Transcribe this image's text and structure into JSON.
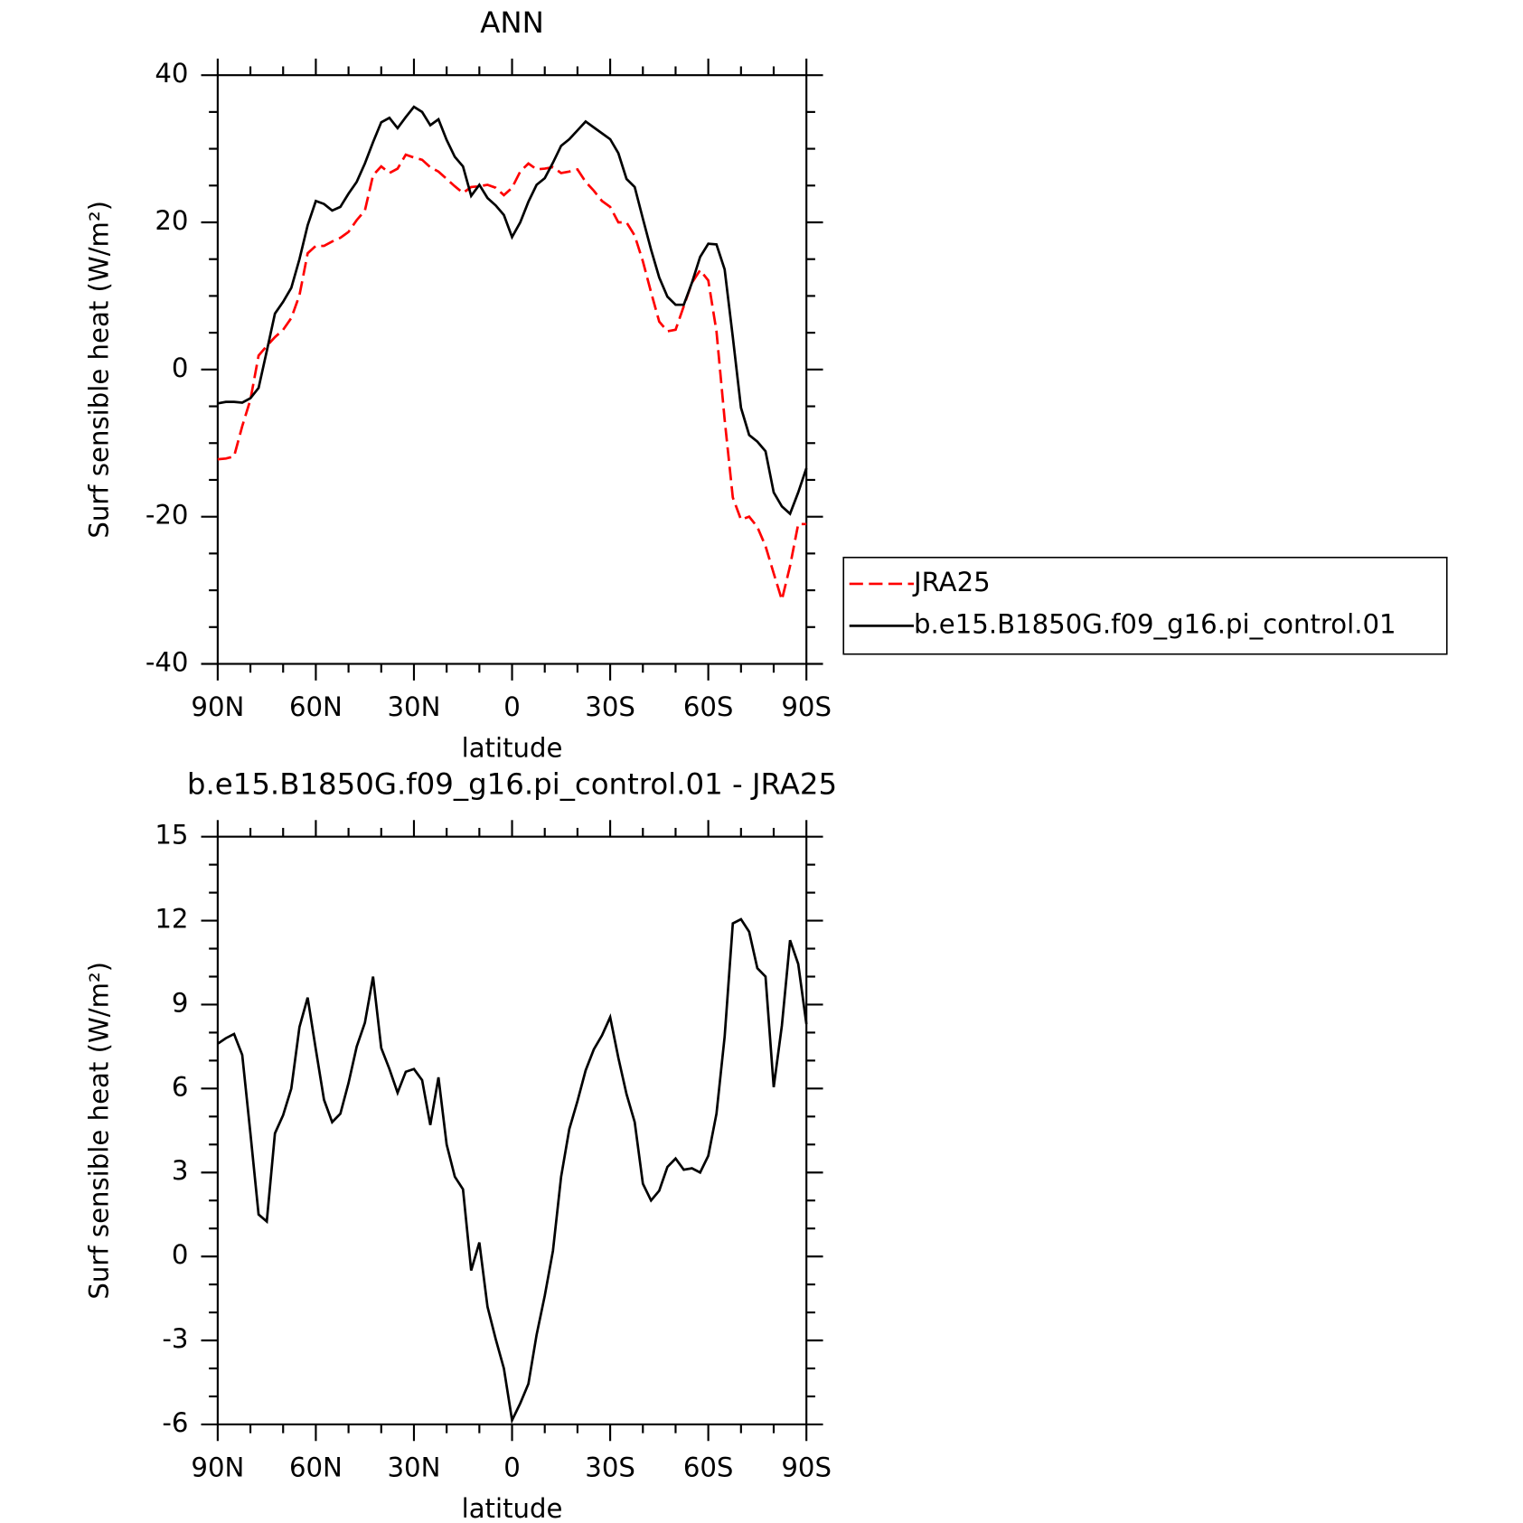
{
  "chart_data": [
    {
      "type": "line",
      "title": "ANN",
      "ylabel": "Surf sensible heat (W/m²)",
      "xlabel": "latitude",
      "xlim": [
        90,
        -90
      ],
      "ylim": [
        -40,
        40
      ],
      "xticks": [
        {
          "value": 90,
          "label": "90N"
        },
        {
          "value": 60,
          "label": "60N"
        },
        {
          "value": 30,
          "label": "30N"
        },
        0,
        {
          "value": -30,
          "label": "30S"
        },
        {
          "value": -60,
          "label": "60S"
        },
        {
          "value": -90,
          "label": "90S"
        }
      ],
      "yticks": [
        -40,
        -20,
        0,
        20,
        40
      ],
      "legend": "outside-right",
      "x": [
        90,
        87.5,
        85,
        82.5,
        80,
        77.5,
        75,
        72.5,
        70,
        67.5,
        65,
        62.5,
        60,
        57.5,
        55,
        52.5,
        50,
        47.5,
        45,
        42.5,
        40,
        37.5,
        35,
        32.5,
        30,
        27.5,
        25,
        22.5,
        20,
        17.5,
        15,
        12.5,
        10,
        7.5,
        5,
        2.5,
        0,
        -2.5,
        -5,
        -7.5,
        -10,
        -12.5,
        -15,
        -17.5,
        -20,
        -22.5,
        -25,
        -27.5,
        -30,
        -32.5,
        -35,
        -37.5,
        -40,
        -42.5,
        -45,
        -47.5,
        -50,
        -52.5,
        -55,
        -57.5,
        -60,
        -62.5,
        -65,
        -67.5,
        -70,
        -72.5,
        -75,
        -77.5,
        -80,
        -82.5,
        -85,
        -87.5,
        -90
      ],
      "series": [
        {
          "name": "JRA25",
          "color": "#ff0000",
          "dash": true,
          "values": [
            -12.2,
            -12.1,
            -11.8,
            -7.7,
            -4.1,
            1.9,
            3.2,
            4.4,
            5.4,
            7,
            10.1,
            15.8,
            16.8,
            16.8,
            17.4,
            17.9,
            18.7,
            20.3,
            21.6,
            26.4,
            27.6,
            26.7,
            27.3,
            29.2,
            28.8,
            28.5,
            27.5,
            26.9,
            25.9,
            24.9,
            24,
            24.8,
            24.9,
            25.1,
            24.7,
            23.7,
            24.7,
            26.9,
            28,
            27.2,
            27.3,
            27.5,
            26.7,
            26.9,
            27.2,
            25.5,
            24.3,
            22.9,
            22.1,
            20,
            20,
            18.2,
            14.7,
            10.5,
            6.5,
            5.2,
            5.4,
            8.6,
            11.8,
            13.5,
            12.1,
            5.2,
            -6.8,
            -17.4,
            -20.4,
            -20,
            -21.4,
            -24,
            -27.7,
            -31.3,
            -26.7,
            -21,
            -21
          ]
        },
        {
          "name": "b.e15.B1850G.f09_g16.pi_control.01",
          "color": "#000000",
          "dash": false,
          "values": [
            -4.6,
            -4.4,
            -4.4,
            -4.5,
            -3.9,
            -2.5,
            2.5,
            7.6,
            9.2,
            11.1,
            15,
            19.6,
            22.9,
            22.5,
            21.6,
            22.1,
            23.9,
            25.5,
            28,
            30.9,
            33.6,
            34.2,
            32.8,
            34.3,
            35.7,
            35,
            33.2,
            34,
            31.2,
            28.9,
            27.6,
            23.6,
            25.1,
            23.3,
            22.3,
            21,
            18,
            20,
            22.8,
            25.1,
            26,
            28.1,
            30.4,
            31.3,
            32.5,
            33.7,
            32.9,
            32.1,
            31.3,
            29.4,
            25.9,
            24.8,
            20.5,
            16.3,
            12.5,
            9.9,
            8.8,
            8.8,
            11.8,
            15.3,
            17.1,
            17,
            13.6,
            4.4,
            -5.2,
            -8.9,
            -9.8,
            -11.1,
            -16.7,
            -18.6,
            -19.6,
            -16.7,
            -13.4
          ]
        }
      ]
    },
    {
      "type": "line",
      "title": "b.e15.B1850G.f09_g16.pi_control.01 - JRA25",
      "ylabel": "Surf sensible heat (W/m²)",
      "xlabel": "latitude",
      "xlim": [
        90,
        -90
      ],
      "ylim": [
        -6,
        15
      ],
      "xticks": [
        {
          "value": 90,
          "label": "90N"
        },
        {
          "value": 60,
          "label": "60N"
        },
        {
          "value": 30,
          "label": "30N"
        },
        0,
        {
          "value": -30,
          "label": "30S"
        },
        {
          "value": -60,
          "label": "60S"
        },
        {
          "value": -90,
          "label": "90S"
        }
      ],
      "yticks": [
        -6,
        -3,
        0,
        3,
        6,
        9,
        12,
        15
      ],
      "x": [
        90,
        87.5,
        85,
        82.5,
        80,
        77.5,
        75,
        72.5,
        70,
        67.5,
        65,
        62.5,
        60,
        57.5,
        55,
        52.5,
        50,
        47.5,
        45,
        42.5,
        40,
        37.5,
        35,
        32.5,
        30,
        27.5,
        25,
        22.5,
        20,
        17.5,
        15,
        12.5,
        10,
        7.5,
        5,
        2.5,
        0,
        -2.5,
        -5,
        -7.5,
        -10,
        -12.5,
        -15,
        -17.5,
        -20,
        -22.5,
        -25,
        -27.5,
        -30,
        -32.5,
        -35,
        -37.5,
        -40,
        -42.5,
        -45,
        -47.5,
        -50,
        -52.5,
        -55,
        -57.5,
        -60,
        -62.5,
        -65,
        -67.5,
        -70,
        -72.5,
        -75,
        -77.5,
        -80,
        -82.5,
        -85,
        -87.5,
        -90
      ],
      "series": [
        {
          "color": "#000000",
          "values": [
            7.6,
            7.8,
            7.95,
            7.2,
            4.4,
            1.5,
            1.25,
            4.4,
            5.05,
            6,
            8.2,
            9.25,
            7.4,
            5.6,
            4.8,
            5.1,
            6.2,
            7.5,
            8.35,
            10,
            7.45,
            6.7,
            5.85,
            6.6,
            6.7,
            6.3,
            4.7,
            6.4,
            4,
            2.85,
            2.4,
            -0.5,
            0.5,
            -1.8,
            -2.95,
            -4,
            -5.85,
            -5.25,
            -4.55,
            -2.8,
            -1.4,
            0.2,
            2.85,
            4.55,
            5.55,
            6.65,
            7.4,
            7.9,
            8.55,
            7.1,
            5.8,
            4.8,
            2.6,
            2,
            2.35,
            3.2,
            3.5,
            3.1,
            3.15,
            3,
            3.6,
            5.1,
            7.85,
            11.9,
            12.05,
            11.6,
            10.3,
            10,
            6.05,
            8.25,
            11.3,
            10.45,
            8.3
          ]
        }
      ]
    }
  ]
}
